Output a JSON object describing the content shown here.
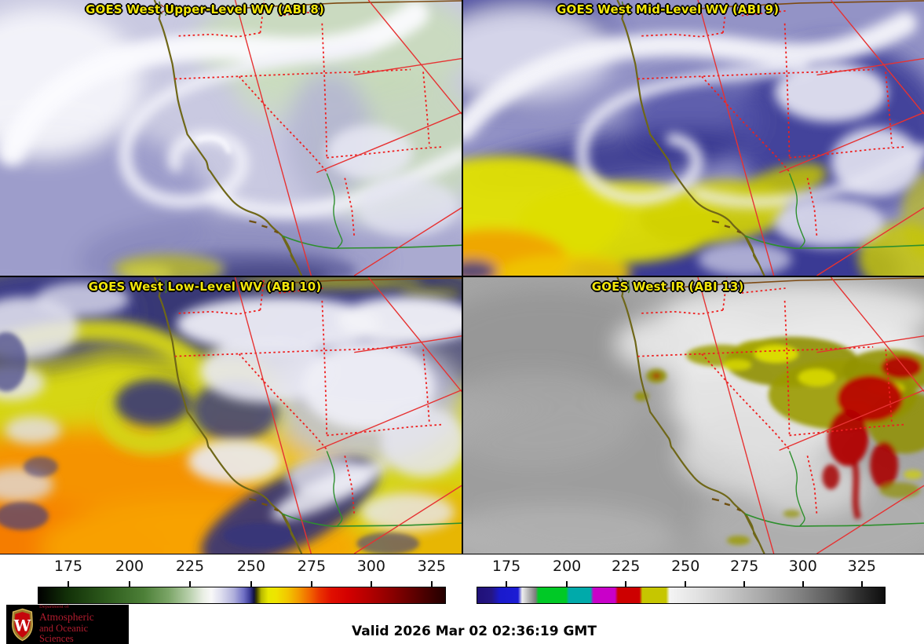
{
  "panels": [
    {
      "id": "abi8",
      "title": "GOES West Upper-Level WV (ABI 8)"
    },
    {
      "id": "abi9",
      "title": "GOES West Mid-Level WV (ABI 9)"
    },
    {
      "id": "abi10",
      "title": "GOES West Low-Level WV (ABI 10)"
    },
    {
      "id": "abi13",
      "title": "GOES West IR (ABI 13)"
    }
  ],
  "colorbars": {
    "wv": {
      "label_values": [
        "175",
        "200",
        "225",
        "250",
        "275",
        "300",
        "325"
      ],
      "tick_percents": [
        7.5,
        22.5,
        37.3,
        52.3,
        67.1,
        81.7,
        96.5
      ],
      "gradient": [
        [
          "#000000",
          0
        ],
        [
          "#123008",
          7
        ],
        [
          "#2e5c1d",
          17
        ],
        [
          "#4d8038",
          26
        ],
        [
          "#7ba567",
          32
        ],
        [
          "#b7cfaa",
          37
        ],
        [
          "#e9eee4",
          40.5
        ],
        [
          "#f8f8f8",
          42.5
        ],
        [
          "#dcdcee",
          45
        ],
        [
          "#b0b0dc",
          48
        ],
        [
          "#7070c4",
          50.5
        ],
        [
          "#3a3a96",
          52
        ],
        [
          "#12123f",
          53
        ],
        [
          "#3d3d00",
          53.6
        ],
        [
          "#b9b900",
          54.8
        ],
        [
          "#e8e800",
          56.5
        ],
        [
          "#efe400",
          58.5
        ],
        [
          "#f2c300",
          61.5
        ],
        [
          "#f39a00",
          64
        ],
        [
          "#f26a00",
          66.5
        ],
        [
          "#ea3600",
          69
        ],
        [
          "#e00f00",
          72
        ],
        [
          "#d40000",
          76
        ],
        [
          "#b50000",
          81
        ],
        [
          "#920000",
          86
        ],
        [
          "#6a0000",
          91
        ],
        [
          "#420000",
          96
        ],
        [
          "#230000",
          100
        ]
      ]
    },
    "ir": {
      "label_values": [
        "175",
        "200",
        "225",
        "250",
        "275",
        "300",
        "325"
      ],
      "tick_percents": [
        7.3,
        22.1,
        36.5,
        51.1,
        65.5,
        79.8,
        94.2
      ],
      "gradient": [
        [
          "#201078",
          0
        ],
        [
          "#241684",
          3.5
        ],
        [
          "#1a1acc",
          5.5
        ],
        [
          "#1c1cd4",
          10
        ],
        [
          "#efefef",
          11
        ],
        [
          "#b9b9b9",
          12.5
        ],
        [
          "#7d7d7d",
          14.3
        ],
        [
          "#00c926",
          15
        ],
        [
          "#00c926",
          21.8
        ],
        [
          "#00aaaa",
          22.5
        ],
        [
          "#00aaaa",
          27.8
        ],
        [
          "#c900c9",
          28.5
        ],
        [
          "#c900c9",
          33.8
        ],
        [
          "#cd0000",
          34.5
        ],
        [
          "#cd0000",
          39.8
        ],
        [
          "#c6c600",
          40.5
        ],
        [
          "#c6c600",
          46.3
        ],
        [
          "#f4f4f4",
          47.2
        ],
        [
          "#e2e2e2",
          54
        ],
        [
          "#c6c6c6",
          62
        ],
        [
          "#a8a8a8",
          70
        ],
        [
          "#828282",
          79
        ],
        [
          "#5a5a5a",
          87
        ],
        [
          "#333333",
          93
        ],
        [
          "#0d0d0d",
          100
        ]
      ]
    }
  },
  "footer": {
    "valid_time": "Valid 2026 Mar 02 02:36:19 GMT"
  },
  "logo": {
    "dept": "Department of",
    "name_line1": "Atmospheric",
    "name_line2": "and Oceanic Sciences",
    "crest_letter": "W",
    "brand_red": "#c5050c"
  },
  "style": {
    "title_color": "#f2e60a"
  }
}
